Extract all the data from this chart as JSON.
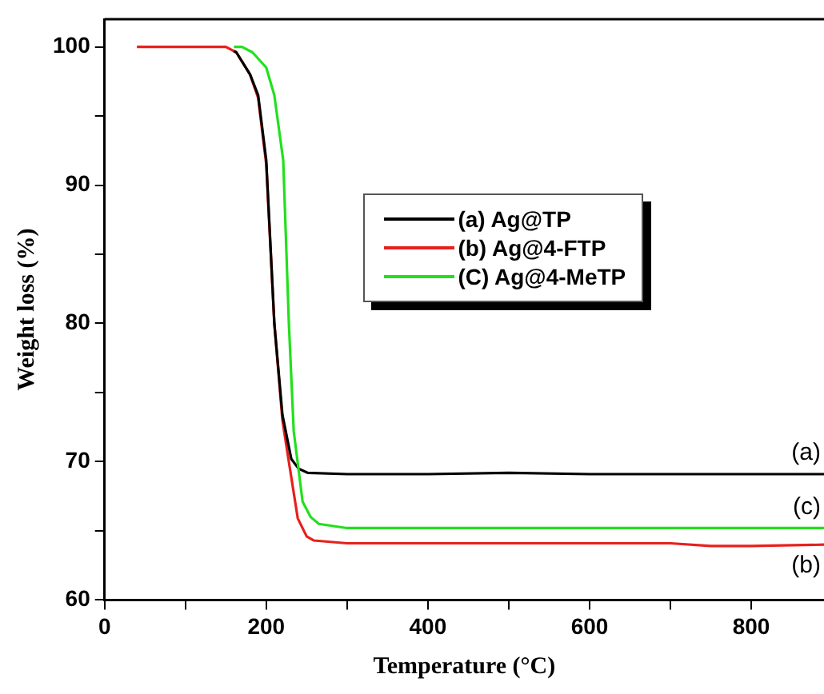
{
  "chart_data": {
    "type": "line",
    "xlabel": "Temperature (°C)",
    "ylabel": "Weight loss (%)",
    "xlim": [
      0,
      890
    ],
    "ylim": [
      60,
      102
    ],
    "xticks": [
      0,
      {
        "value": 100,
        "label": null
      },
      200,
      {
        "value": 300,
        "label": null
      },
      400,
      {
        "value": 500,
        "label": null
      },
      600,
      {
        "value": 700,
        "label": null
      },
      800
    ],
    "yticks": [
      60,
      {
        "value": 65,
        "label": null
      },
      70,
      {
        "value": 75,
        "label": null
      },
      80,
      {
        "value": 85,
        "label": null
      },
      90,
      {
        "value": 95,
        "label": null
      },
      100
    ],
    "grid": false,
    "legend": "right",
    "marker": "none",
    "line_style": "solid",
    "series": [
      {
        "name": "(a) Ag@TP",
        "color": "#000000",
        "x": [
          160,
          163,
          180,
          190,
          200,
          210,
          220,
          231,
          240,
          251,
          300,
          400,
          500,
          600,
          700,
          800,
          890
        ],
        "values": [
          99.7,
          99.6,
          98,
          96.5,
          91.8,
          80,
          73.4,
          70.2,
          69.5,
          69.2,
          69.1,
          69.1,
          69.2,
          69.1,
          69.1,
          69.1,
          69.1
        ]
      },
      {
        "name": "(b) Ag@4-FTP",
        "color": "#e8201c",
        "x": [
          40,
          100,
          150,
          163,
          180,
          190,
          200,
          210,
          220,
          229,
          239,
          250,
          259,
          300,
          400,
          500,
          600,
          700,
          750,
          800,
          890
        ],
        "values": [
          100,
          100,
          100,
          99.6,
          98,
          96.3,
          91.5,
          80,
          73,
          69.6,
          65.9,
          64.6,
          64.3,
          64.1,
          64.1,
          64.1,
          64.1,
          64.1,
          63.9,
          63.9,
          64
        ]
      },
      {
        "name": "(C) Ag@4-MeTP",
        "color": "#22e01c",
        "x": [
          160,
          170,
          183,
          200,
          210,
          221,
          228,
          234,
          245,
          255,
          265,
          300,
          400,
          500,
          600,
          700,
          800,
          890
        ],
        "values": [
          100,
          100,
          99.6,
          98.5,
          96.5,
          91.8,
          80,
          72.2,
          67.1,
          66,
          65.5,
          65.2,
          65.2,
          65.2,
          65.2,
          65.2,
          65.2,
          65.2
        ]
      }
    ],
    "annotations": [
      "(a)",
      "(b)",
      "(c)"
    ]
  }
}
